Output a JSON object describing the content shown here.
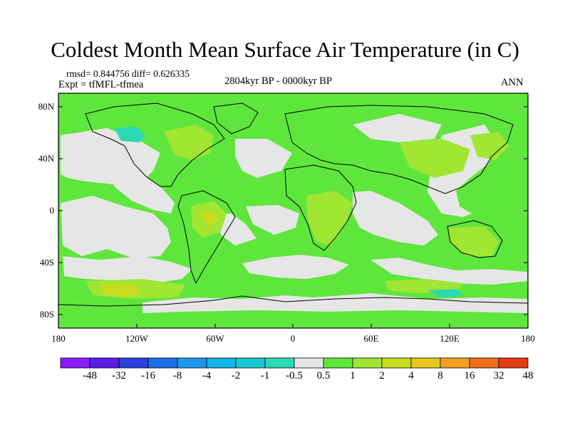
{
  "figure": {
    "title": "Coldest Month Mean Surface Air Temperature (in C)",
    "stats": "rmsd= 0.844756 diff= 0.626335",
    "expt": "Expt = tfMFL-tfmea",
    "period": "2804kyr BP - 0000kyr BP",
    "season": "ANN"
  },
  "axes": {
    "y_ticks": [
      "80N",
      "40N",
      "0",
      "40S",
      "80S"
    ],
    "x_ticks": [
      "180",
      "120W",
      "60W",
      "0",
      "60E",
      "120E",
      "180"
    ]
  },
  "colorbar": {
    "labels": [
      "-48",
      "-32",
      "-16",
      "-8",
      "-4",
      "-2",
      "-1",
      "-0.5",
      "0.5",
      "1",
      "2",
      "4",
      "8",
      "16",
      "32",
      "48"
    ],
    "colors": [
      "#8c1aff",
      "#5a1ee6",
      "#2b3fe0",
      "#1a6fe6",
      "#1e96f0",
      "#12b4e8",
      "#18c8d2",
      "#2bd9b4",
      "#e6e6e6",
      "#5ee63c",
      "#a0e632",
      "#c8dc1e",
      "#e6c81e",
      "#f0a01e",
      "#f06e1a",
      "#e63c14"
    ]
  },
  "map": {
    "colors": {
      "ocean_neutral": "#e6e6e6",
      "warm_1": "#5ee63c",
      "warm_2": "#a0e632",
      "warm_3": "#c8dc1e",
      "cool_1": "#2bd9b4",
      "coast": "#000000"
    }
  }
}
